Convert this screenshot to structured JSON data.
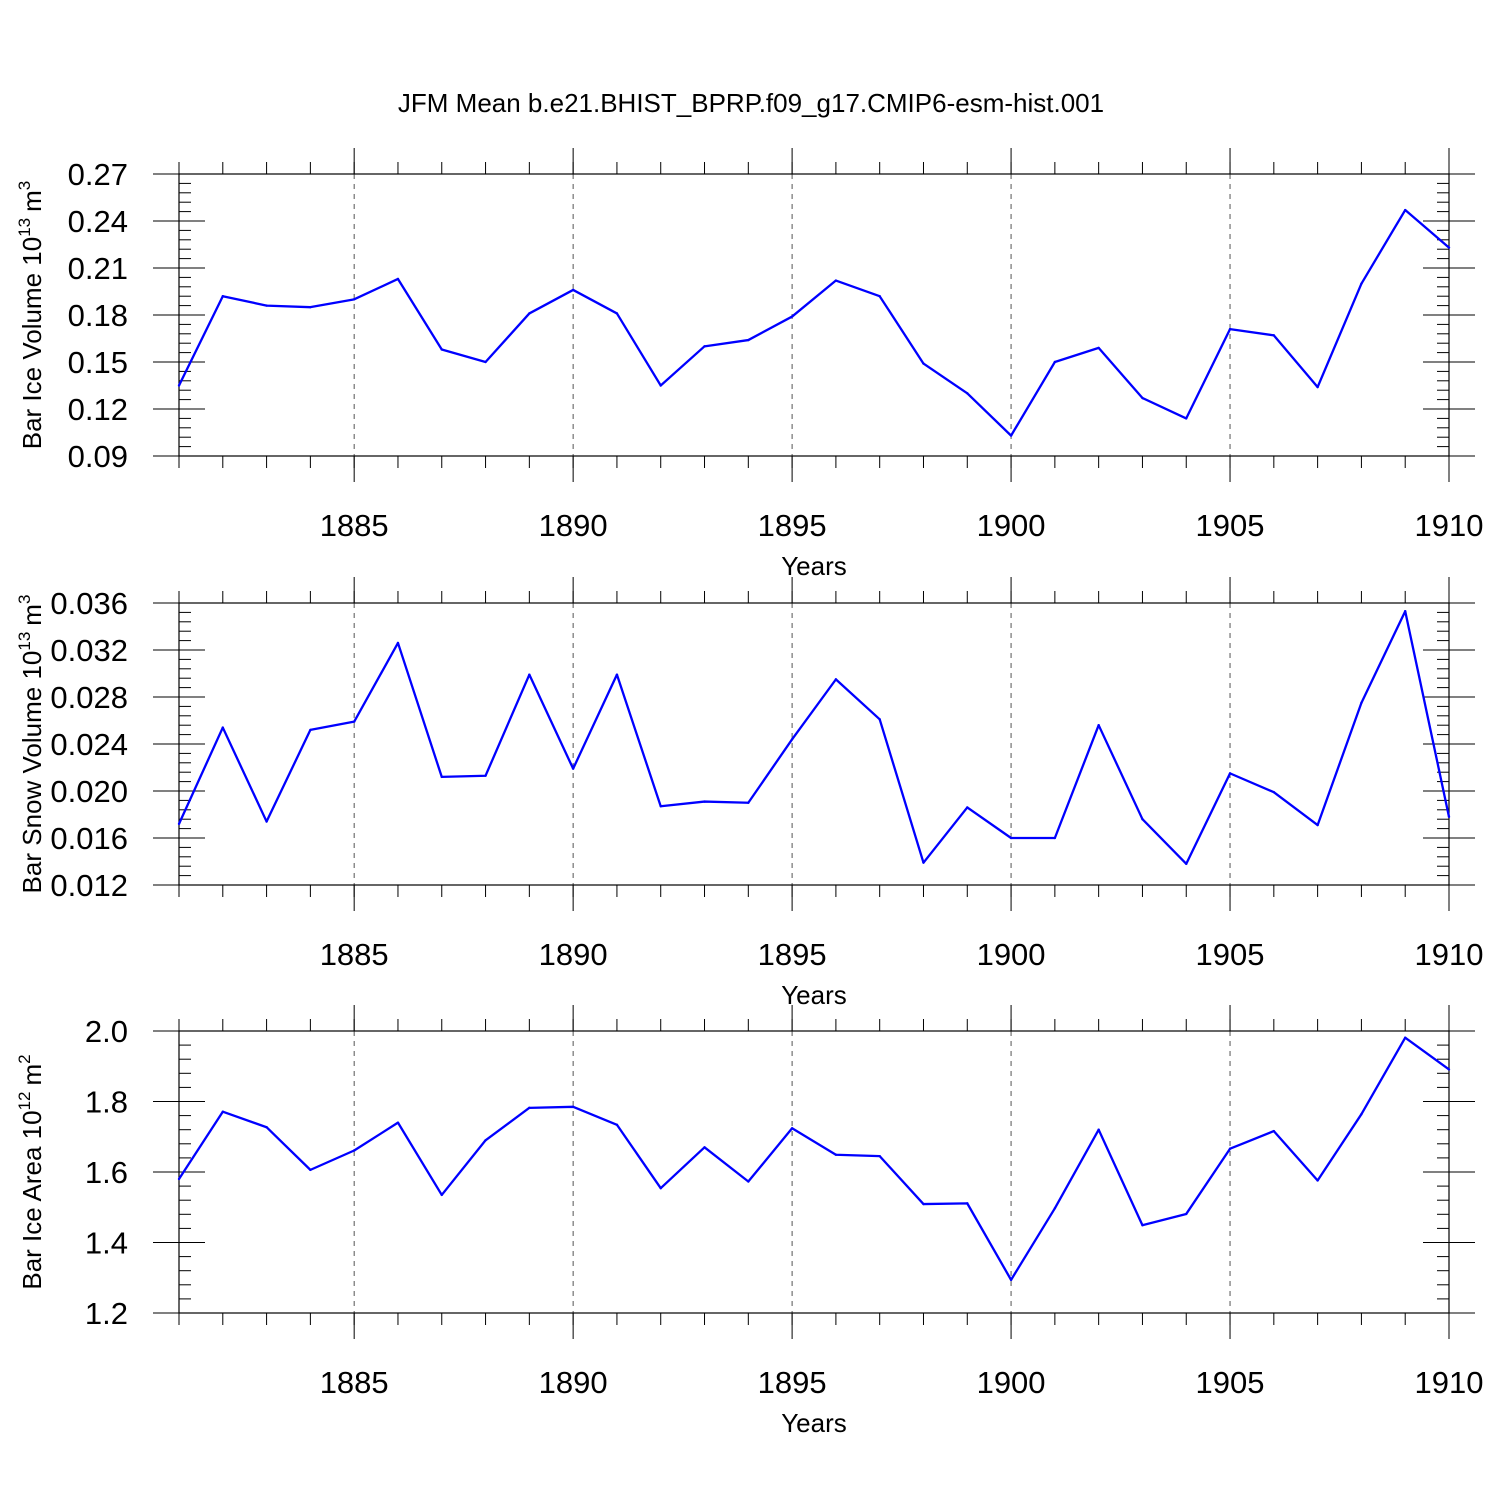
{
  "colors": {
    "line": "#0000ff",
    "axis": "#000000",
    "grid": "#555555"
  },
  "chart_data": [
    {
      "type": "line",
      "title": "JFM Mean b.e21.BHIST_BPRP.f09_g17.CMIP6-esm-hist.001",
      "xlabel": "Years",
      "ylabel": "Bar Ice Volume 10",
      "ylabel_exp": "13",
      "ylabel_unit": "m",
      "ylabel_unit_exp": "3",
      "xlim": [
        1881,
        1910
      ],
      "ylim": [
        0.09,
        0.27
      ],
      "xticks": [
        "1885",
        "1890",
        "1895",
        "1900",
        "1905",
        "1910"
      ],
      "yticks": [
        "0.09",
        "0.12",
        "0.15",
        "0.18",
        "0.21",
        "0.24",
        "0.27"
      ],
      "grid": "x-dashed",
      "x": [
        1881,
        1882,
        1883,
        1884,
        1885,
        1886,
        1887,
        1888,
        1889,
        1890,
        1891,
        1892,
        1893,
        1894,
        1895,
        1896,
        1897,
        1898,
        1899,
        1900,
        1901,
        1902,
        1903,
        1904,
        1905,
        1906,
        1907,
        1908,
        1909,
        1910
      ],
      "series": [
        {
          "name": "Bar Ice Volume",
          "values": [
            0.135,
            0.192,
            0.186,
            0.185,
            0.19,
            0.203,
            0.158,
            0.15,
            0.181,
            0.196,
            0.181,
            0.135,
            0.16,
            0.164,
            0.179,
            0.202,
            0.192,
            0.149,
            0.13,
            0.103,
            0.15,
            0.159,
            0.127,
            0.114,
            0.171,
            0.167,
            0.134,
            0.2,
            0.247,
            0.223
          ]
        }
      ]
    },
    {
      "type": "line",
      "title": "",
      "xlabel": "Years",
      "ylabel": "Bar Snow Volume 10",
      "ylabel_exp": "13",
      "ylabel_unit": "m",
      "ylabel_unit_exp": "3",
      "xlim": [
        1881,
        1910
      ],
      "ylim": [
        0.012,
        0.036
      ],
      "xticks": [
        "1885",
        "1890",
        "1895",
        "1900",
        "1905",
        "1910"
      ],
      "yticks": [
        "0.012",
        "0.016",
        "0.020",
        "0.024",
        "0.028",
        "0.032",
        "0.036"
      ],
      "grid": "x-dashed",
      "x": [
        1881,
        1882,
        1883,
        1884,
        1885,
        1886,
        1887,
        1888,
        1889,
        1890,
        1891,
        1892,
        1893,
        1894,
        1895,
        1896,
        1897,
        1898,
        1899,
        1900,
        1901,
        1902,
        1903,
        1904,
        1905,
        1906,
        1907,
        1908,
        1909,
        1910
      ],
      "series": [
        {
          "name": "Bar Snow Volume",
          "values": [
            0.0172,
            0.0254,
            0.0174,
            0.0252,
            0.0259,
            0.0326,
            0.0212,
            0.0213,
            0.0299,
            0.0219,
            0.0299,
            0.0187,
            0.0191,
            0.019,
            0.0244,
            0.0295,
            0.0261,
            0.0139,
            0.0186,
            0.016,
            0.016,
            0.0256,
            0.0176,
            0.0138,
            0.0215,
            0.0199,
            0.0171,
            0.0275,
            0.0353,
            0.0178
          ]
        }
      ]
    },
    {
      "type": "line",
      "title": "",
      "xlabel": "Years",
      "ylabel": "Bar Ice Area 10",
      "ylabel_exp": "12",
      "ylabel_unit": "m",
      "ylabel_unit_exp": "2",
      "xlim": [
        1881,
        1910
      ],
      "ylim": [
        1.2,
        2.0
      ],
      "xticks": [
        "1885",
        "1890",
        "1895",
        "1900",
        "1905",
        "1910"
      ],
      "yticks": [
        "1.2",
        "1.4",
        "1.6",
        "1.8",
        "2.0"
      ],
      "grid": "x-dashed",
      "x": [
        1881,
        1882,
        1883,
        1884,
        1885,
        1886,
        1887,
        1888,
        1889,
        1890,
        1891,
        1892,
        1893,
        1894,
        1895,
        1896,
        1897,
        1898,
        1899,
        1900,
        1901,
        1902,
        1903,
        1904,
        1905,
        1906,
        1907,
        1908,
        1909,
        1910
      ],
      "series": [
        {
          "name": "Bar Ice Area",
          "values": [
            1.58,
            1.771,
            1.727,
            1.606,
            1.661,
            1.74,
            1.535,
            1.69,
            1.782,
            1.785,
            1.734,
            1.554,
            1.67,
            1.573,
            1.724,
            1.649,
            1.645,
            1.509,
            1.511,
            1.294,
            1.497,
            1.72,
            1.449,
            1.481,
            1.666,
            1.716,
            1.576,
            1.764,
            1.981,
            1.891
          ]
        }
      ]
    }
  ]
}
